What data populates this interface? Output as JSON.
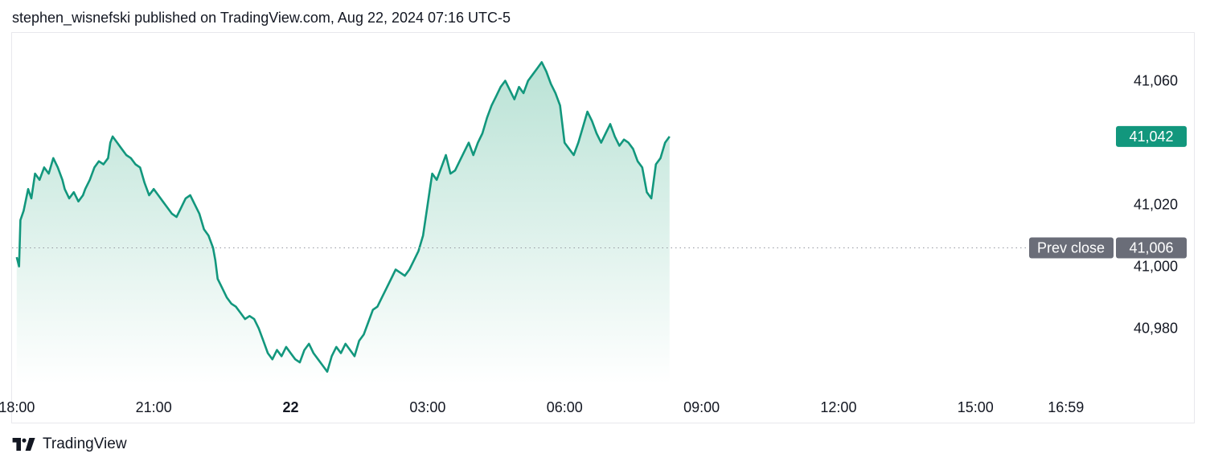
{
  "header": {
    "text": "stephen_wisnefski published on TradingView.com, Aug 22, 2024 07:16 UTC-5"
  },
  "footer": {
    "brand": "TradingView",
    "logo_icon": "tradingview-logo-icon"
  },
  "colors": {
    "line": "#12977d",
    "fill_top": "#b9e2d5",
    "fill_bottom": "#ffffff",
    "price_badge": "#12977d",
    "prev_badge": "#6a6d78",
    "grid_dots": "#9598a1"
  },
  "chart_data": {
    "type": "area",
    "title": "",
    "xlabel": "",
    "ylabel": "",
    "x_ticks": [
      {
        "label": "18:00",
        "hour": 0,
        "bold": false
      },
      {
        "label": "21:00",
        "hour": 3,
        "bold": false
      },
      {
        "label": "22",
        "hour": 6,
        "bold": true
      },
      {
        "label": "03:00",
        "hour": 9,
        "bold": false
      },
      {
        "label": "06:00",
        "hour": 12,
        "bold": false
      },
      {
        "label": "09:00",
        "hour": 15,
        "bold": false
      },
      {
        "label": "12:00",
        "hour": 18,
        "bold": false
      },
      {
        "label": "15:00",
        "hour": 21,
        "bold": false
      },
      {
        "label": "16:59",
        "hour": 22.98,
        "bold": false
      }
    ],
    "y_ticks": [
      {
        "label": "41,060",
        "value": 41060
      },
      {
        "label": "41,020",
        "value": 41020
      },
      {
        "label": "41,000",
        "value": 41000
      },
      {
        "label": "40,980",
        "value": 40980
      }
    ],
    "ylim": [
      40962,
      41070
    ],
    "x_range_hours": [
      -0.05,
      24.2
    ],
    "x_unit": "hours since 18:00",
    "prev_close": {
      "label": "Prev close",
      "value_label": "41,006",
      "value": 41006
    },
    "last_price": {
      "label": "41,042",
      "value": 41042
    },
    "series": [
      {
        "values": [
          [
            0.0,
            41003
          ],
          [
            0.05,
            41000
          ],
          [
            0.08,
            41015
          ],
          [
            0.15,
            41018
          ],
          [
            0.25,
            41025
          ],
          [
            0.32,
            41022
          ],
          [
            0.4,
            41030
          ],
          [
            0.5,
            41028
          ],
          [
            0.6,
            41032
          ],
          [
            0.7,
            41030
          ],
          [
            0.8,
            41035
          ],
          [
            0.9,
            41032
          ],
          [
            1.0,
            41028
          ],
          [
            1.05,
            41025
          ],
          [
            1.15,
            41022
          ],
          [
            1.25,
            41024
          ],
          [
            1.35,
            41021
          ],
          [
            1.45,
            41023
          ],
          [
            1.5,
            41025
          ],
          [
            1.6,
            41028
          ],
          [
            1.7,
            41032
          ],
          [
            1.8,
            41034
          ],
          [
            1.9,
            41033
          ],
          [
            2.0,
            41035
          ],
          [
            2.05,
            41040
          ],
          [
            2.1,
            41042
          ],
          [
            2.2,
            41040
          ],
          [
            2.3,
            41038
          ],
          [
            2.4,
            41036
          ],
          [
            2.5,
            41035
          ],
          [
            2.6,
            41033
          ],
          [
            2.7,
            41032
          ],
          [
            2.8,
            41027
          ],
          [
            2.9,
            41023
          ],
          [
            3.0,
            41025
          ],
          [
            3.1,
            41023
          ],
          [
            3.2,
            41021
          ],
          [
            3.3,
            41019
          ],
          [
            3.4,
            41017
          ],
          [
            3.5,
            41016
          ],
          [
            3.6,
            41019
          ],
          [
            3.7,
            41022
          ],
          [
            3.8,
            41023
          ],
          [
            3.9,
            41020
          ],
          [
            4.0,
            41017
          ],
          [
            4.1,
            41012
          ],
          [
            4.2,
            41010
          ],
          [
            4.3,
            41006
          ],
          [
            4.35,
            41002
          ],
          [
            4.4,
            40996
          ],
          [
            4.5,
            40993
          ],
          [
            4.6,
            40990
          ],
          [
            4.7,
            40988
          ],
          [
            4.8,
            40987
          ],
          [
            4.9,
            40985
          ],
          [
            5.0,
            40983
          ],
          [
            5.1,
            40984
          ],
          [
            5.2,
            40983
          ],
          [
            5.3,
            40980
          ],
          [
            5.4,
            40976
          ],
          [
            5.5,
            40972
          ],
          [
            5.6,
            40970
          ],
          [
            5.7,
            40973
          ],
          [
            5.8,
            40971
          ],
          [
            5.9,
            40974
          ],
          [
            6.0,
            40972
          ],
          [
            6.1,
            40970
          ],
          [
            6.2,
            40969
          ],
          [
            6.3,
            40973
          ],
          [
            6.4,
            40975
          ],
          [
            6.5,
            40972
          ],
          [
            6.6,
            40970
          ],
          [
            6.7,
            40968
          ],
          [
            6.8,
            40966
          ],
          [
            6.9,
            40971
          ],
          [
            7.0,
            40974
          ],
          [
            7.1,
            40972
          ],
          [
            7.2,
            40975
          ],
          [
            7.3,
            40973
          ],
          [
            7.4,
            40971
          ],
          [
            7.5,
            40976
          ],
          [
            7.6,
            40978
          ],
          [
            7.7,
            40982
          ],
          [
            7.8,
            40986
          ],
          [
            7.9,
            40987
          ],
          [
            8.0,
            40990
          ],
          [
            8.1,
            40993
          ],
          [
            8.2,
            40996
          ],
          [
            8.3,
            40999
          ],
          [
            8.4,
            40998
          ],
          [
            8.5,
            40997
          ],
          [
            8.6,
            40999
          ],
          [
            8.7,
            41002
          ],
          [
            8.8,
            41005
          ],
          [
            8.9,
            41010
          ],
          [
            9.0,
            41020
          ],
          [
            9.05,
            41025
          ],
          [
            9.1,
            41030
          ],
          [
            9.2,
            41028
          ],
          [
            9.3,
            41032
          ],
          [
            9.4,
            41036
          ],
          [
            9.5,
            41030
          ],
          [
            9.6,
            41031
          ],
          [
            9.7,
            41034
          ],
          [
            9.8,
            41037
          ],
          [
            9.9,
            41040
          ],
          [
            10.0,
            41036
          ],
          [
            10.1,
            41040
          ],
          [
            10.2,
            41043
          ],
          [
            10.3,
            41048
          ],
          [
            10.4,
            41052
          ],
          [
            10.5,
            41055
          ],
          [
            10.6,
            41058
          ],
          [
            10.7,
            41060
          ],
          [
            10.8,
            41057
          ],
          [
            10.9,
            41054
          ],
          [
            11.0,
            41058
          ],
          [
            11.1,
            41056
          ],
          [
            11.2,
            41060
          ],
          [
            11.3,
            41062
          ],
          [
            11.4,
            41064
          ],
          [
            11.5,
            41066
          ],
          [
            11.6,
            41063
          ],
          [
            11.7,
            41059
          ],
          [
            11.8,
            41056
          ],
          [
            11.9,
            41052
          ],
          [
            12.0,
            41040
          ],
          [
            12.1,
            41038
          ],
          [
            12.2,
            41036
          ],
          [
            12.3,
            41040
          ],
          [
            12.4,
            41045
          ],
          [
            12.5,
            41050
          ],
          [
            12.6,
            41047
          ],
          [
            12.7,
            41043
          ],
          [
            12.8,
            41040
          ],
          [
            12.9,
            41043
          ],
          [
            13.0,
            41046
          ],
          [
            13.1,
            41042
          ],
          [
            13.2,
            41039
          ],
          [
            13.3,
            41041
          ],
          [
            13.4,
            41040
          ],
          [
            13.5,
            41038
          ],
          [
            13.6,
            41034
          ],
          [
            13.7,
            41032
          ],
          [
            13.8,
            41024
          ],
          [
            13.9,
            41022
          ],
          [
            14.0,
            41033
          ],
          [
            14.1,
            41035
          ],
          [
            14.2,
            41040
          ],
          [
            14.3,
            41042
          ]
        ]
      }
    ]
  }
}
